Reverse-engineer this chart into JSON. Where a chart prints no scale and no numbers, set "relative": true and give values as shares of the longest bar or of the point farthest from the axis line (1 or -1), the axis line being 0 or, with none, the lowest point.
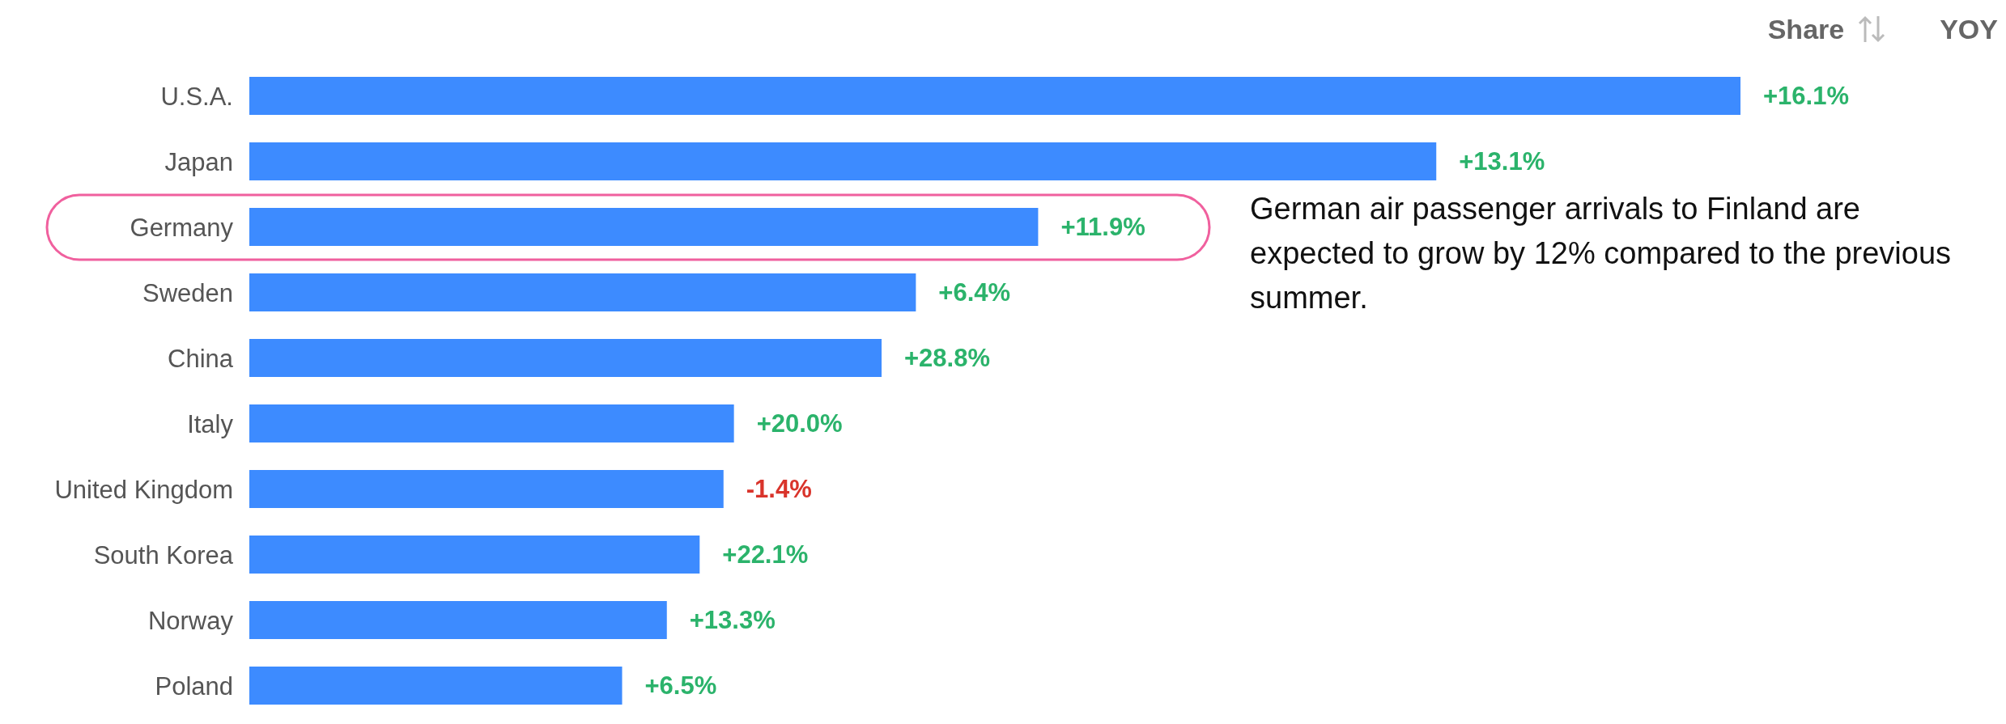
{
  "chart_data": {
    "type": "bar",
    "orientation": "horizontal",
    "relative": true,
    "categories": [
      "U.S.A.",
      "Japan",
      "Germany",
      "Sweden",
      "China",
      "Italy",
      "United Kingdom",
      "South Korea",
      "Norway",
      "Poland"
    ],
    "values": [
      1,
      0.796,
      0.529,
      0.447,
      0.424,
      0.325,
      0.318,
      0.302,
      0.28,
      0.25
    ],
    "color": "#3d8bff",
    "annotations": [
      "Share",
      "YOY",
      "German air passenger arrivals to Finland are expected to grow by 12% compared to the previous summer.",
      {
        "text": "+16.1%",
        "x": 1,
        "y": "U.S.A."
      },
      {
        "text": "+13.1%",
        "x": 0.796,
        "y": "Japan"
      },
      {
        "text": "+11.9%",
        "x": 0.529,
        "y": "Germany"
      },
      {
        "text": "+6.4%",
        "x": 0.447,
        "y": "Sweden"
      },
      {
        "text": "+28.8%",
        "x": 0.424,
        "y": "China"
      },
      {
        "text": "+20.0%",
        "x": 0.325,
        "y": "Italy"
      },
      {
        "text": "-1.4%",
        "x": 0.318,
        "y": "United Kingdom"
      },
      {
        "text": "+22.1%",
        "x": 0.302,
        "y": "South Korea"
      },
      {
        "text": "+13.3%",
        "x": 0.28,
        "y": "Norway"
      },
      {
        "text": "+6.5%",
        "x": 0.25,
        "y": "Poland"
      }
    ],
    "legend": false,
    "grid": false
  }
}
